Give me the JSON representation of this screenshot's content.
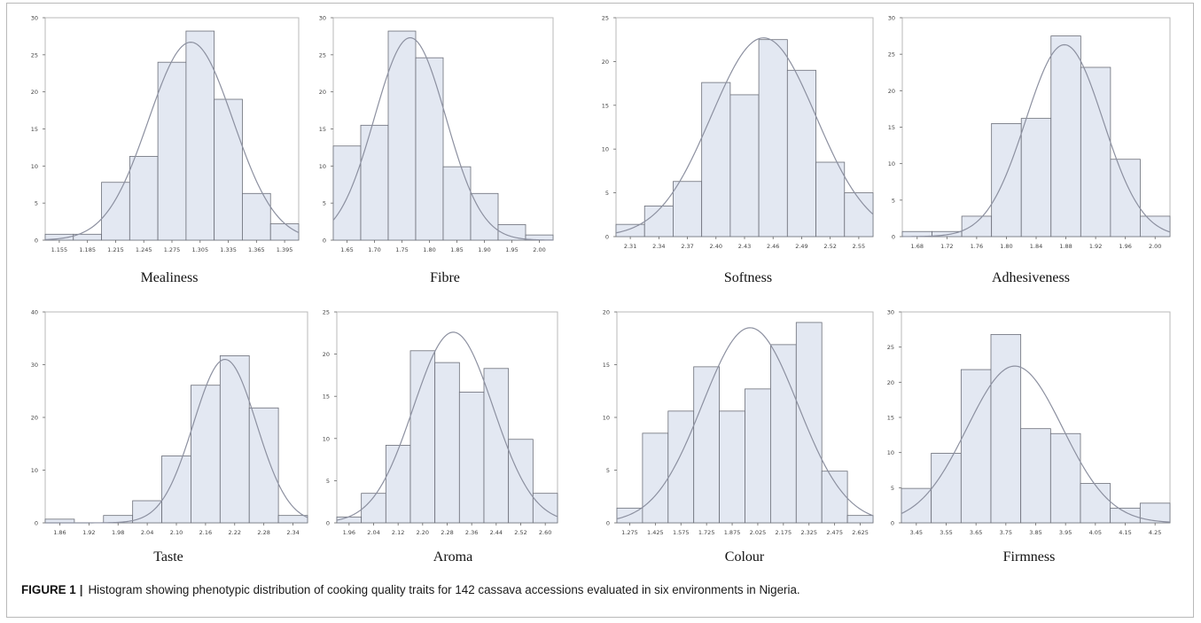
{
  "figure": {
    "caption_label": "FIGURE 1",
    "caption_separator": "|",
    "caption_text": "Histogram showing phenotypic distribution of cooking quality traits for 142 cassava accessions evaluated in six environments in Nigeria."
  },
  "colors": {
    "bar_fill": "#e3e8f2",
    "bar_stroke": "#6b6e78",
    "curve": "#8c90a0",
    "axis": "#666666",
    "frame": "#b9b9b9"
  },
  "chart_data": [
    {
      "type": "bar",
      "title": "Mealiness",
      "bin_starts": [
        1.14,
        1.17,
        1.2,
        1.23,
        1.26,
        1.29,
        1.32,
        1.35,
        1.38
      ],
      "bin_width": 0.03,
      "values": [
        0.8,
        0.8,
        7.8,
        11.3,
        24.0,
        28.2,
        19.0,
        6.3,
        2.2
      ],
      "xticks": [
        "1.155",
        "1.185",
        "1.215",
        "1.245",
        "1.275",
        "1.305",
        "1.335",
        "1.365",
        "1.395"
      ],
      "xtick_values": [
        1.155,
        1.185,
        1.215,
        1.245,
        1.275,
        1.305,
        1.335,
        1.365,
        1.395
      ],
      "xlim": [
        1.14,
        1.41
      ],
      "ylim": [
        0,
        30
      ],
      "yticks": [
        0,
        5,
        10,
        15,
        20,
        25,
        30
      ],
      "normal_fit": {
        "mean": 1.295,
        "sd": 0.045,
        "peak": 26.7
      }
    },
    {
      "type": "bar",
      "title": "Fibre",
      "bin_starts": [
        1.625,
        1.675,
        1.725,
        1.775,
        1.825,
        1.875,
        1.925,
        1.975
      ],
      "bin_width": 0.05,
      "values": [
        12.7,
        15.5,
        28.2,
        24.6,
        9.9,
        6.3,
        2.1,
        0.7
      ],
      "xticks": [
        "1.65",
        "1.70",
        "1.75",
        "1.80",
        "1.85",
        "1.90",
        "1.95",
        "2.00"
      ],
      "xtick_values": [
        1.65,
        1.7,
        1.75,
        1.8,
        1.85,
        1.9,
        1.95,
        2.0
      ],
      "xlim": [
        1.625,
        2.025
      ],
      "ylim": [
        0,
        30
      ],
      "yticks": [
        0,
        5,
        10,
        15,
        20,
        25,
        30
      ],
      "normal_fit": {
        "mean": 1.765,
        "sd": 0.065,
        "peak": 27.3
      }
    },
    {
      "type": "bar",
      "title": "Softness",
      "bin_starts": [
        2.295,
        2.325,
        2.355,
        2.385,
        2.415,
        2.445,
        2.475,
        2.505,
        2.535
      ],
      "bin_width": 0.03,
      "values": [
        1.4,
        3.5,
        6.3,
        17.6,
        16.2,
        22.5,
        19.0,
        8.5,
        5.0
      ],
      "xticks": [
        "2.31",
        "2.34",
        "2.37",
        "2.40",
        "2.43",
        "2.46",
        "2.49",
        "2.52",
        "2.55"
      ],
      "xtick_values": [
        2.31,
        2.34,
        2.37,
        2.4,
        2.43,
        2.46,
        2.49,
        2.52,
        2.55
      ],
      "xlim": [
        2.295,
        2.565
      ],
      "ylim": [
        0,
        25
      ],
      "yticks": [
        0,
        5,
        10,
        15,
        20,
        25
      ],
      "normal_fit": {
        "mean": 2.45,
        "sd": 0.055,
        "peak": 22.7
      }
    },
    {
      "type": "bar",
      "title": "Adhesiveness",
      "bin_starts": [
        1.66,
        1.7,
        1.74,
        1.78,
        1.82,
        1.86,
        1.9,
        1.94,
        1.98
      ],
      "bin_width": 0.04,
      "values": [
        0.7,
        0.7,
        2.8,
        15.5,
        16.2,
        27.5,
        23.2,
        10.6,
        2.8
      ],
      "xticks": [
        "1.68",
        "1.72",
        "1.76",
        "1.80",
        "1.84",
        "1.88",
        "1.92",
        "1.96",
        "2.00"
      ],
      "xtick_values": [
        1.68,
        1.72,
        1.76,
        1.8,
        1.84,
        1.88,
        1.92,
        1.96,
        2.0
      ],
      "xlim": [
        1.66,
        2.02
      ],
      "ylim": [
        0,
        30
      ],
      "yticks": [
        0,
        5,
        10,
        15,
        20,
        25,
        30
      ],
      "normal_fit": {
        "mean": 1.878,
        "sd": 0.052,
        "peak": 26.3
      }
    },
    {
      "type": "bar",
      "title": "Taste",
      "bin_starts": [
        1.83,
        1.89,
        1.95,
        2.01,
        2.07,
        2.13,
        2.19,
        2.25,
        2.31
      ],
      "bin_width": 0.06,
      "values": [
        0.7,
        0.0,
        1.4,
        4.2,
        12.7,
        26.1,
        31.7,
        21.8,
        1.4
      ],
      "xticks": [
        "1.86",
        "1.92",
        "1.98",
        "2.04",
        "2.10",
        "2.16",
        "2.22",
        "2.28",
        "2.34"
      ],
      "xtick_values": [
        1.86,
        1.92,
        1.98,
        2.04,
        2.1,
        2.16,
        2.22,
        2.28,
        2.34
      ],
      "xlim": [
        1.83,
        2.37
      ],
      "ylim": [
        0,
        40
      ],
      "yticks": [
        0,
        10,
        20,
        30,
        40
      ],
      "normal_fit": {
        "mean": 2.2,
        "sd": 0.065,
        "peak": 31.0
      }
    },
    {
      "type": "bar",
      "title": "Aroma",
      "bin_starts": [
        1.92,
        2.0,
        2.08,
        2.16,
        2.24,
        2.32,
        2.4,
        2.48,
        2.56
      ],
      "bin_width": 0.08,
      "values": [
        0.7,
        3.5,
        9.2,
        20.4,
        19.0,
        15.5,
        18.3,
        9.9,
        3.5
      ],
      "xticks": [
        "1.96",
        "2.04",
        "2.12",
        "2.20",
        "2.28",
        "2.36",
        "2.44",
        "2.52",
        "2.60"
      ],
      "xtick_values": [
        1.96,
        2.04,
        2.12,
        2.2,
        2.28,
        2.36,
        2.44,
        2.52,
        2.6
      ],
      "xlim": [
        1.92,
        2.64
      ],
      "ylim": [
        0,
        25
      ],
      "yticks": [
        0,
        5,
        10,
        15,
        20,
        25
      ],
      "normal_fit": {
        "mean": 2.3,
        "sd": 0.13,
        "peak": 22.6
      }
    },
    {
      "type": "bar",
      "title": "Colour",
      "bin_starts": [
        1.2,
        1.35,
        1.5,
        1.65,
        1.8,
        1.95,
        2.1,
        2.25,
        2.4,
        2.55
      ],
      "bin_width": 0.15,
      "values": [
        1.4,
        8.5,
        10.6,
        14.8,
        10.6,
        12.7,
        16.9,
        19.0,
        4.9,
        0.7
      ],
      "xticks": [
        "1.275",
        "1.425",
        "1.575",
        "1.725",
        "1.875",
        "2.025",
        "2.175",
        "2.325",
        "2.475",
        "2.625"
      ],
      "xtick_values": [
        1.275,
        1.425,
        1.575,
        1.725,
        1.875,
        2.025,
        2.175,
        2.325,
        2.475,
        2.625
      ],
      "xlim": [
        1.2,
        2.7
      ],
      "ylim": [
        0,
        20
      ],
      "yticks": [
        0,
        5,
        10,
        15,
        20
      ],
      "normal_fit": {
        "mean": 1.98,
        "sd": 0.28,
        "peak": 18.5
      }
    },
    {
      "type": "bar",
      "title": "Firmness",
      "bin_starts": [
        3.4,
        3.5,
        3.6,
        3.7,
        3.8,
        3.9,
        4.0,
        4.1,
        4.2
      ],
      "bin_width": 0.1,
      "values": [
        4.9,
        9.9,
        21.8,
        26.8,
        13.4,
        12.7,
        5.6,
        2.1,
        2.8
      ],
      "xticks": [
        "3.45",
        "3.55",
        "3.65",
        "3.75",
        "3.85",
        "3.95",
        "4.05",
        "4.15",
        "4.25"
      ],
      "xtick_values": [
        3.45,
        3.55,
        3.65,
        3.75,
        3.85,
        3.95,
        4.05,
        4.15,
        4.25
      ],
      "xlim": [
        3.4,
        4.3
      ],
      "ylim": [
        0,
        30
      ],
      "yticks": [
        0,
        5,
        10,
        15,
        20,
        25,
        30
      ],
      "normal_fit": {
        "mean": 3.78,
        "sd": 0.16,
        "peak": 22.3
      }
    }
  ]
}
